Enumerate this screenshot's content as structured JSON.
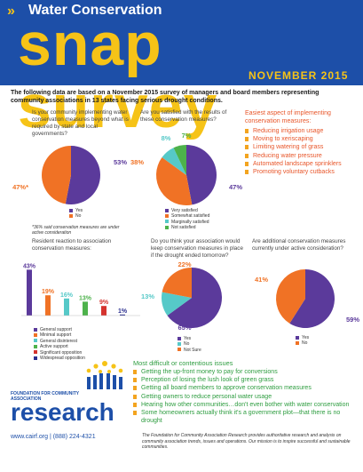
{
  "header": {
    "brand": "Water Conservation",
    "title": "snap survey",
    "date": "NOVEMBER 2015"
  },
  "intro": "The following data are based on a November 2015 survey of managers and board members representing community associations in 13 states facing serious drought conditions.",
  "colors": {
    "blue": "#1d4fa8",
    "yellow": "#f6c317",
    "orange": "#f07225",
    "purple": "#5b3a9b",
    "teal": "#56c9c8",
    "green": "#4db24b",
    "red": "#d5332e",
    "navy": "#2b2f8f"
  },
  "q1": {
    "question": "Is your community implementing water conservation measures beyond what is required by state and local governments?",
    "legend": [
      "Yes",
      "No"
    ],
    "labels": [
      "53%",
      "47%*"
    ],
    "footnote": "*36% said conservation measures are under active consideration"
  },
  "q2": {
    "question": "Are you satisfied with the results of these conservation measures?",
    "legend": [
      "Very satisfied",
      "Somewhat satisfied",
      "Marginally satisfied",
      "Not satisfied"
    ],
    "labels": [
      "47%",
      "38%",
      "8%",
      "7%"
    ]
  },
  "q3": {
    "title": "Easiest aspect of implementing conservation measures:",
    "items": [
      "Reducing irrigation usage",
      "Moving to xeriscaping",
      "Limiting watering of grass",
      "Reducing water pressure",
      "Automated landscape sprinklers",
      "Promoting voluntary cutbacks"
    ]
  },
  "q4": {
    "question": "Resident reaction to association conservation measures:",
    "legend": [
      "General support",
      "Minimal support",
      "General disinterest",
      "Active support",
      "Significant opposition",
      "Widespread opposition"
    ],
    "labels": [
      "43%",
      "19%",
      "16%",
      "13%",
      "9%",
      "1%"
    ]
  },
  "q5": {
    "question": "Do you think your association would keep conservation measures in place if the drought ended tomorrow?",
    "legend": [
      "Yes",
      "No",
      "Not Sure"
    ],
    "labels": [
      "65%",
      "13%",
      "22%"
    ]
  },
  "q6": {
    "question": "Are additional conservation measures currently under active consideration?",
    "legend": [
      "Yes",
      "No"
    ],
    "labels": [
      "59%",
      "41%"
    ]
  },
  "difficult": {
    "title": "Most difficult or contentious issues",
    "items": [
      "Getting the up-front money to pay for conversions",
      "Perception of losing the lush look of green grass",
      "Getting all board members to approve conservation measures",
      "Getting owners to reduce personal water usage",
      "Hearing how other communities…don't even bother with water conservation",
      "Some homeowners actually think it's a government plot—that there is no drought"
    ]
  },
  "logo": {
    "line1": "FOUNDATION FOR COMMUNITY ASSOCIATION",
    "line2": "research"
  },
  "contact": "www.cairf.org  |  (888) 224-4321",
  "footer": "The Foundation for Community Association Research provides authoritative research and analysis on community association trends, issues and operations. Our mission is to inspire successful and sustainable communities.",
  "chart_data": [
    {
      "type": "pie",
      "title": "Is your community implementing water conservation measures beyond what is required by state and local governments?",
      "categories": [
        "Yes",
        "No"
      ],
      "values": [
        53,
        47
      ]
    },
    {
      "type": "pie",
      "title": "Are you satisfied with the results of these conservation measures?",
      "categories": [
        "Very satisfied",
        "Somewhat satisfied",
        "Marginally satisfied",
        "Not satisfied"
      ],
      "values": [
        47,
        38,
        8,
        7
      ]
    },
    {
      "type": "bar",
      "title": "Resident reaction to association conservation measures:",
      "categories": [
        "General support",
        "Minimal support",
        "General disinterest",
        "Active support",
        "Significant opposition",
        "Widespread opposition"
      ],
      "values": [
        43,
        19,
        16,
        13,
        9,
        1
      ],
      "ylim": [
        0,
        45
      ]
    },
    {
      "type": "pie",
      "title": "Do you think your association would keep conservation measures in place if the drought ended tomorrow?",
      "categories": [
        "Yes",
        "No",
        "Not Sure"
      ],
      "values": [
        65,
        13,
        22
      ]
    },
    {
      "type": "pie",
      "title": "Are additional conservation measures currently under active consideration?",
      "categories": [
        "Yes",
        "No"
      ],
      "values": [
        59,
        41
      ]
    }
  ]
}
